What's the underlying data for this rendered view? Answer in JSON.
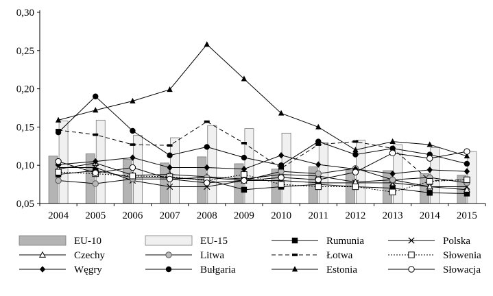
{
  "chart_data": {
    "type": "bar+line",
    "categories": [
      "2004",
      "2005",
      "2006",
      "2007",
      "2008",
      "2009",
      "2010",
      "2011",
      "2012",
      "2013",
      "2014",
      "2015"
    ],
    "ylim": [
      0.05,
      0.3
    ],
    "y_ticks": [
      "0,05",
      "0,10",
      "0,15",
      "0,20",
      "0,25",
      "0,30"
    ],
    "bars": [
      {
        "name": "EU-10",
        "color": "#b4b4b4",
        "values": [
          0.112,
          0.115,
          0.108,
          0.103,
          0.111,
          0.102,
          0.095,
          0.098,
          0.094,
          0.093,
          0.089,
          0.087
        ]
      },
      {
        "name": "EU-15",
        "color": "#f0f0f0",
        "values": [
          0.158,
          0.159,
          0.139,
          0.136,
          0.152,
          0.148,
          0.142,
          0.13,
          0.133,
          0.127,
          0.123,
          0.118
        ]
      }
    ],
    "series": [
      {
        "name": "Rumunia",
        "marker": "square-filled",
        "dash": "solid",
        "values": [
          0.088,
          0.093,
          0.084,
          0.084,
          0.081,
          0.068,
          0.072,
          0.075,
          0.072,
          0.07,
          0.064,
          0.063
        ]
      },
      {
        "name": "Polska",
        "marker": "x",
        "dash": "solid",
        "values": [
          0.097,
          0.097,
          0.08,
          0.072,
          0.072,
          0.08,
          0.08,
          0.077,
          0.077,
          0.077,
          0.072,
          0.072
        ]
      },
      {
        "name": "Czechy",
        "marker": "triangle-open",
        "dash": "solid",
        "values": [
          0.095,
          0.103,
          0.087,
          0.088,
          0.085,
          0.082,
          0.088,
          0.086,
          0.078,
          0.081,
          0.072,
          0.068
        ]
      },
      {
        "name": "Litwa",
        "marker": "circle-gray",
        "dash": "solid",
        "values": [
          0.08,
          0.076,
          0.082,
          0.082,
          0.084,
          0.08,
          0.092,
          0.089,
          0.096,
          0.081,
          0.084,
          0.077
        ]
      },
      {
        "name": "Łotwa",
        "marker": "dash",
        "dash": "dashed",
        "values": [
          0.146,
          0.14,
          0.127,
          0.126,
          0.157,
          0.129,
          0.096,
          0.127,
          0.131,
          0.122,
          0.08,
          0.081
        ]
      },
      {
        "name": "Słowenia",
        "marker": "square-open",
        "dash": "dotted",
        "values": [
          0.091,
          0.089,
          0.086,
          0.085,
          0.08,
          0.088,
          0.075,
          0.072,
          0.072,
          0.065,
          0.079,
          0.081
        ]
      },
      {
        "name": "Węgry",
        "marker": "diamond-filled",
        "dash": "solid",
        "values": [
          0.101,
          0.105,
          0.11,
          0.097,
          0.097,
          0.095,
          0.113,
          0.101,
          0.095,
          0.089,
          0.094,
          0.092
        ]
      },
      {
        "name": "Bułgaria",
        "marker": "circle-filled",
        "dash": "solid",
        "values": [
          0.143,
          0.19,
          0.145,
          0.113,
          0.124,
          0.11,
          0.1,
          0.131,
          0.114,
          0.122,
          0.114,
          0.102
        ]
      },
      {
        "name": "Estonia",
        "marker": "triangle-filled",
        "dash": "solid",
        "values": [
          0.159,
          0.172,
          0.184,
          0.199,
          0.258,
          0.213,
          0.168,
          0.15,
          0.12,
          0.131,
          0.127,
          0.112
        ]
      },
      {
        "name": "Słowacja",
        "marker": "circle-open",
        "dash": "solid",
        "values": [
          0.105,
          0.09,
          0.097,
          0.082,
          0.077,
          0.08,
          0.084,
          0.081,
          0.091,
          0.116,
          0.109,
          0.118
        ]
      }
    ]
  }
}
